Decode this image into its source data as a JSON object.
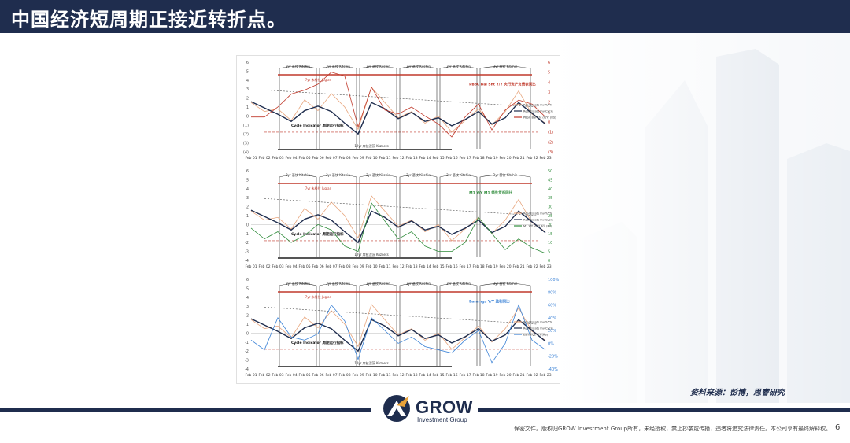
{
  "header": {
    "title": "中国经济短周期正接近转折点。"
  },
  "source": "资料来源：彭博，思睿研究",
  "logo": {
    "name": "GROW",
    "sub": "Investment Group"
  },
  "footer": {
    "disclaimer": "保密文件。版权归GROW Investment Group所有，未经授权，禁止抄袭或传播，违者将追究法律责任。本公司享有最终解释权。",
    "page": "6"
  },
  "colors": {
    "navy": "#1f2d4e",
    "red": "#c0392b",
    "orange": "#e8a67e",
    "green": "#2e8b3a",
    "blue": "#3b82d6"
  },
  "chart_data": [
    {
      "type": "line",
      "x": [
        "Feb 01",
        "Feb 02",
        "Feb 03",
        "Feb 04",
        "Feb 05",
        "Feb 06",
        "Feb 07",
        "Feb 08",
        "Feb 09",
        "Feb 10",
        "Feb 11",
        "Feb 12",
        "Feb 13",
        "Feb 14",
        "Feb 15",
        "Feb 16",
        "Feb 17",
        "Feb 18",
        "Feb 19",
        "Feb 20",
        "Feb 21",
        "Feb 22",
        "Feb 23"
      ],
      "ylim": [
        -4,
        6
      ],
      "y_ticks": [
        "6",
        "5",
        "4",
        "3",
        "2",
        "1",
        "0",
        "(1)",
        "(2)",
        "(3)",
        "(4)"
      ],
      "y2_ticks": [
        "6",
        "5",
        "4",
        "3",
        "2",
        "1",
        "0",
        "(1)",
        "(2)",
        "(3)"
      ],
      "cycle_labels": [
        "3yr 基钦 Kitchin",
        "3yr 基钦 Kitchin",
        "3yr 基钦 Kitchin",
        "3yr 基钦 Kitchin",
        "3yr 基钦 Kitchin",
        "3yr 基钦 Kitchin"
      ],
      "juglar_label": "7yr 朱格拉 Juglar",
      "kuznets_label": "12yr 库兹涅茨 Kuznets",
      "indicator_label": "Cycle Indicator 周期运行指标",
      "annotation": "PBoC Bal Sht Y/Y 央行资产负债表同比",
      "series": [
        {
          "name": "Real Estate Inv Y/Y%",
          "color": "#e8a67e",
          "values": [
            1.5,
            0.5,
            0.8,
            -0.5,
            1.8,
            0.6,
            2.5,
            1.0,
            -1.5,
            3.2,
            1.5,
            -0.2,
            0.5,
            -0.8,
            0.0,
            -1.8,
            -0.5,
            0.8,
            -1.0,
            0.5,
            2.8,
            0.2,
            -0.8
          ]
        },
        {
          "name": "Real Estate Inv Cycle",
          "color": "#1f2d4e",
          "values": [
            1.6,
            0.9,
            0.2,
            -0.6,
            0.6,
            1.1,
            0.5,
            -0.8,
            -2.0,
            1.5,
            0.8,
            -0.3,
            0.4,
            -0.6,
            -0.2,
            -1.1,
            -0.4,
            0.5,
            -0.9,
            -0.2,
            1.5,
            0.3,
            -0.9
          ]
        },
        {
          "name": "PBoC Bal Sht (Y/Y) (RS)",
          "color": "#c0392b",
          "values": [
            0.5,
            0.5,
            1.5,
            2.8,
            3.2,
            3.8,
            5.0,
            4.6,
            -0.5,
            3.5,
            1.2,
            0.8,
            1.5,
            0.6,
            -0.2,
            -1.5,
            0.5,
            1.8,
            -0.8,
            1.2,
            2.2,
            1.8,
            0.5
          ]
        }
      ]
    },
    {
      "type": "line",
      "x": [
        "Feb 01",
        "Feb 02",
        "Feb 03",
        "Feb 04",
        "Feb 05",
        "Feb 06",
        "Feb 07",
        "Feb 08",
        "Feb 09",
        "Feb 10",
        "Feb 11",
        "Feb 12",
        "Feb 13",
        "Feb 14",
        "Feb 15",
        "Feb 16",
        "Feb 17",
        "Feb 18",
        "Feb 19",
        "Feb 20",
        "Feb 21",
        "Feb 22",
        "Feb 23"
      ],
      "ylim": [
        -4,
        6
      ],
      "y_ticks": [
        "6",
        "5",
        "4",
        "3",
        "2",
        "1",
        "0",
        "-1",
        "-2",
        "-3",
        "-4"
      ],
      "y2_ticks": [
        "50",
        "45",
        "40",
        "35",
        "30",
        "25",
        "20",
        "15",
        "10",
        "5",
        "0"
      ],
      "cycle_labels": [
        "3yr 基钦 Kitchin",
        "3yr 基钦 Kitchin",
        "3yr 基钦 Kitchin",
        "3yr 基钦 Kitchin",
        "3yr 基钦 Kitchin",
        "3yr 基钦 Kitchin"
      ],
      "juglar_label": "7yr 朱格拉 Juglar",
      "kuznets_label": "12yr 库兹涅茨 Kuznets",
      "indicator_label": "Cycle Indicator 周期运行指标",
      "annotation": "M1 Y/Y M1 领先货币同比",
      "series": [
        {
          "name": "Real Estate Inv Y/Y%",
          "color": "#e8a67e",
          "values": [
            1.5,
            0.5,
            0.8,
            -0.5,
            1.8,
            0.6,
            2.5,
            1.0,
            -1.5,
            3.2,
            1.5,
            -0.2,
            0.5,
            -0.8,
            0.0,
            -1.8,
            -0.5,
            0.8,
            -1.0,
            0.5,
            2.8,
            0.2,
            -0.8
          ]
        },
        {
          "name": "Real Estate Inv Cycle",
          "color": "#1f2d4e",
          "values": [
            1.6,
            0.9,
            0.2,
            -0.6,
            0.6,
            1.1,
            0.5,
            -0.8,
            -2.0,
            1.5,
            0.8,
            -0.3,
            0.4,
            -0.6,
            -0.2,
            -1.1,
            -0.4,
            0.5,
            -0.9,
            -0.2,
            1.5,
            0.3,
            -0.9
          ]
        },
        {
          "name": "M1 Y/Y lead 3m (RS)",
          "color": "#2e8b3a",
          "values": [
            18,
            12,
            16,
            10,
            14,
            20,
            17,
            8,
            5,
            32,
            22,
            12,
            16,
            8,
            5,
            5,
            10,
            24,
            15,
            6,
            12,
            7,
            4
          ]
        }
      ]
    },
    {
      "type": "line",
      "x": [
        "Feb 01",
        "Feb 02",
        "Feb 03",
        "Feb 04",
        "Feb 05",
        "Feb 06",
        "Feb 07",
        "Feb 08",
        "Feb 09",
        "Feb 10",
        "Feb 11",
        "Feb 12",
        "Feb 13",
        "Feb 14",
        "Feb 15",
        "Feb 16",
        "Feb 17",
        "Feb 18",
        "Feb 19",
        "Feb 20",
        "Feb 21",
        "Feb 22",
        "Feb 23"
      ],
      "ylim": [
        -4,
        6
      ],
      "y_ticks": [
        "6",
        "5",
        "4",
        "3",
        "2",
        "1",
        "0",
        "-1",
        "-2",
        "-3",
        "-4"
      ],
      "y2_ticks": [
        "100%",
        "80%",
        "60%",
        "40%",
        "20%",
        "0%",
        "-20%",
        "-40%"
      ],
      "cycle_labels": [
        "3yr 基钦 Kitchin",
        "3yr 基钦 Kitchin",
        "3yr 基钦 Kitchin",
        "3yr 基钦 Kitchin",
        "3yr 基钦 Kitchin",
        "3yr 基钦 Kitchin"
      ],
      "juglar_label": "7yr 朱格拉 Juglar",
      "kuznets_label": "12yr 库兹涅茨 Kuznets",
      "indicator_label": "Cycle Indicator 周期运行指标",
      "annotation": "Earnings Y/Y 盈利同比",
      "series": [
        {
          "name": "Real Estate Inv Y/Y%",
          "color": "#e8a67e",
          "values": [
            1.5,
            0.5,
            0.8,
            -0.5,
            1.8,
            0.6,
            2.5,
            1.0,
            -1.5,
            3.2,
            1.5,
            -0.2,
            0.5,
            -0.8,
            0.0,
            -1.8,
            -0.5,
            0.8,
            -1.0,
            0.5,
            2.8,
            0.2,
            -0.8
          ]
        },
        {
          "name": "Real Estate Inv Cycle",
          "color": "#1f2d4e",
          "values": [
            1.6,
            0.9,
            0.2,
            -0.6,
            0.6,
            1.1,
            0.5,
            -0.8,
            -2.0,
            1.5,
            0.8,
            -0.3,
            0.4,
            -0.6,
            -0.2,
            -1.1,
            -0.4,
            0.5,
            -0.9,
            -0.2,
            1.5,
            0.3,
            -0.9
          ]
        },
        {
          "name": "Earnings Y/Y (RS)",
          "color": "#3b82d6",
          "values": [
            5,
            -10,
            40,
            10,
            5,
            15,
            60,
            35,
            -25,
            40,
            20,
            0,
            10,
            -5,
            -10,
            -15,
            5,
            20,
            -30,
            0,
            60,
            5,
            -10
          ]
        }
      ]
    }
  ]
}
